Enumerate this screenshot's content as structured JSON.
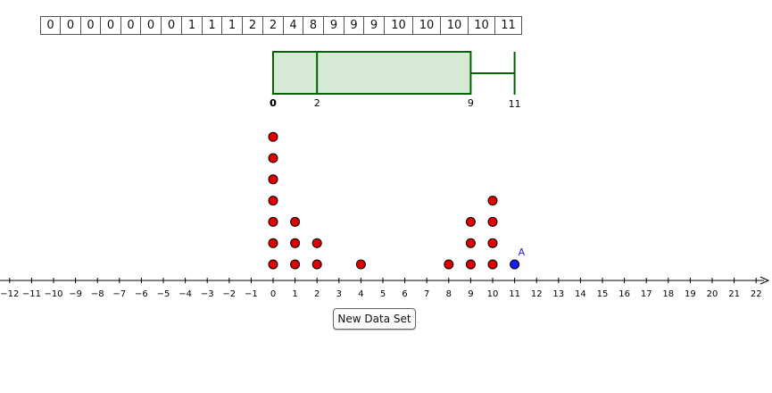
{
  "data_row": [
    "0",
    "0",
    "0",
    "0",
    "0",
    "0",
    "0",
    "1",
    "1",
    "1",
    "2",
    "2",
    "4",
    "8",
    "9",
    "9",
    "9",
    "10",
    "10",
    "10",
    "10",
    "11"
  ],
  "chart_data": {
    "type": "scatter",
    "subtype": "dot plot with box plot",
    "xlim": [
      -12.3,
      22.5
    ],
    "x_ticks": [
      -12,
      -11,
      -10,
      -9,
      -8,
      -7,
      -6,
      -5,
      -4,
      -3,
      -2,
      -1,
      0,
      1,
      2,
      3,
      4,
      5,
      6,
      7,
      8,
      9,
      10,
      11,
      12,
      13,
      14,
      15,
      16,
      17,
      18,
      19,
      20,
      21,
      22
    ],
    "dot_points": [
      {
        "x": 0,
        "stack": 1
      },
      {
        "x": 0,
        "stack": 2
      },
      {
        "x": 0,
        "stack": 3
      },
      {
        "x": 0,
        "stack": 4
      },
      {
        "x": 0,
        "stack": 5
      },
      {
        "x": 0,
        "stack": 6
      },
      {
        "x": 0,
        "stack": 7
      },
      {
        "x": 1,
        "stack": 1
      },
      {
        "x": 1,
        "stack": 2
      },
      {
        "x": 1,
        "stack": 3
      },
      {
        "x": 2,
        "stack": 1
      },
      {
        "x": 2,
        "stack": 2
      },
      {
        "x": 4,
        "stack": 1
      },
      {
        "x": 8,
        "stack": 1
      },
      {
        "x": 9,
        "stack": 1
      },
      {
        "x": 9,
        "stack": 2
      },
      {
        "x": 9,
        "stack": 3
      },
      {
        "x": 10,
        "stack": 1
      },
      {
        "x": 10,
        "stack": 2
      },
      {
        "x": 10,
        "stack": 3
      },
      {
        "x": 10,
        "stack": 4
      }
    ],
    "movable_point": {
      "label": "A",
      "x": 11,
      "stack": 1
    },
    "box_plot": {
      "min": 0,
      "q1": 0,
      "median": 2,
      "q3": 9,
      "max": 11,
      "labels": {
        "min": "0",
        "q1": "0",
        "median": "2",
        "q3": "9",
        "max": "11"
      }
    },
    "colors": {
      "dot": "#e00000",
      "movable": "#1a1aff",
      "box_stroke": "#006400",
      "box_fill": "#d6e8d6",
      "axis": "#000000"
    }
  },
  "button": {
    "label": "New Data Set"
  }
}
